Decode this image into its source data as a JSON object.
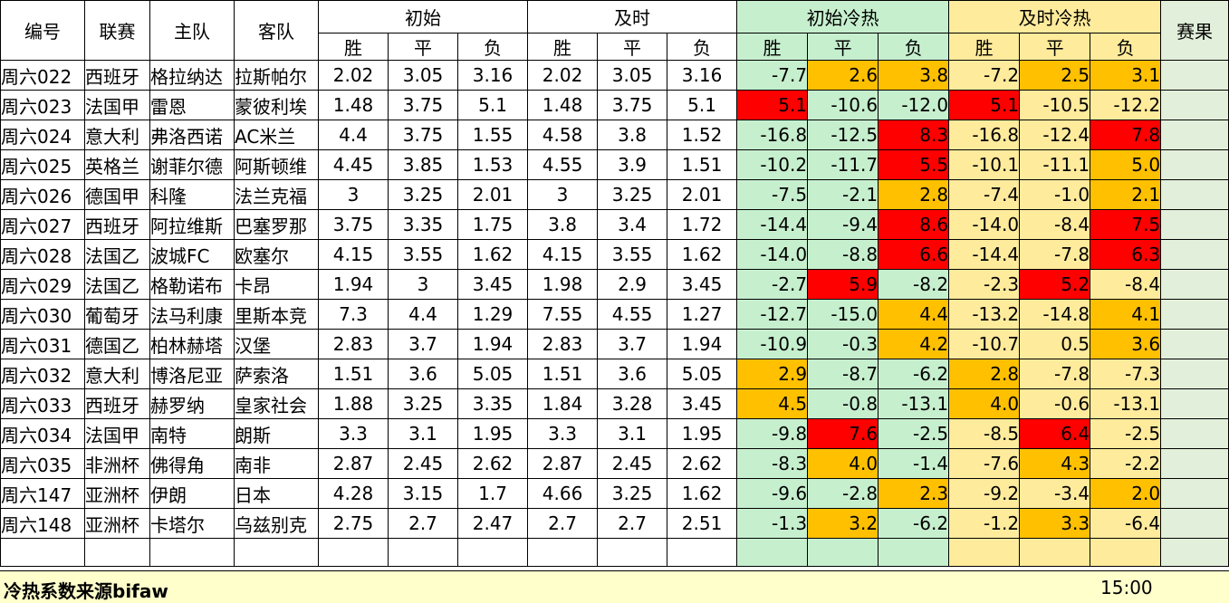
{
  "headers": {
    "id": "编号",
    "league": "联赛",
    "home": "主队",
    "away": "客队",
    "initial": "初始",
    "live": "及时",
    "initial_heat": "初始冷热",
    "live_heat": "及时冷热",
    "result": "赛果",
    "win": "胜",
    "draw": "平",
    "loss": "负"
  },
  "rows": [
    {
      "id": "周六022",
      "league": "西班牙",
      "home": "格拉纳达",
      "away": "拉斯帕尔",
      "init": [
        "2.02",
        "3.05",
        "3.16"
      ],
      "live": [
        "2.02",
        "3.05",
        "3.16"
      ],
      "iheat": [
        "-7.7",
        "2.6",
        "3.8"
      ],
      "ihc": [
        "g",
        "o",
        "o"
      ],
      "lheat": [
        "-7.2",
        "2.5",
        "3.1"
      ],
      "lhc": [
        "y",
        "o",
        "o"
      ]
    },
    {
      "id": "周六023",
      "league": "法国甲",
      "home": "雷恩",
      "away": "蒙彼利埃",
      "init": [
        "1.48",
        "3.75",
        "5.1"
      ],
      "live": [
        "1.48",
        "3.75",
        "5.1"
      ],
      "iheat": [
        "5.1",
        "-10.6",
        "-12.0"
      ],
      "ihc": [
        "r",
        "g",
        "g"
      ],
      "lheat": [
        "5.1",
        "-10.5",
        "-12.2"
      ],
      "lhc": [
        "r",
        "y",
        "y"
      ]
    },
    {
      "id": "周六024",
      "league": "意大利",
      "home": "弗洛西诺",
      "away": "AC米兰",
      "init": [
        "4.4",
        "3.75",
        "1.55"
      ],
      "live": [
        "4.58",
        "3.8",
        "1.52"
      ],
      "iheat": [
        "-16.8",
        "-12.5",
        "8.3"
      ],
      "ihc": [
        "g",
        "g",
        "r"
      ],
      "lheat": [
        "-16.8",
        "-12.4",
        "7.8"
      ],
      "lhc": [
        "y",
        "y",
        "r"
      ]
    },
    {
      "id": "周六025",
      "league": "英格兰",
      "home": "谢菲尔德",
      "away": "阿斯顿维",
      "init": [
        "4.45",
        "3.85",
        "1.53"
      ],
      "live": [
        "4.55",
        "3.9",
        "1.51"
      ],
      "iheat": [
        "-10.2",
        "-11.7",
        "5.5"
      ],
      "ihc": [
        "g",
        "g",
        "r"
      ],
      "lheat": [
        "-10.1",
        "-11.1",
        "5.0"
      ],
      "lhc": [
        "y",
        "y",
        "o"
      ]
    },
    {
      "id": "周六026",
      "league": "德国甲",
      "home": "科隆",
      "away": "法兰克福",
      "init": [
        "3",
        "3.25",
        "2.01"
      ],
      "live": [
        "3",
        "3.25",
        "2.01"
      ],
      "iheat": [
        "-7.5",
        "-2.1",
        "2.8"
      ],
      "ihc": [
        "g",
        "g",
        "o"
      ],
      "lheat": [
        "-7.4",
        "-1.0",
        "2.1"
      ],
      "lhc": [
        "y",
        "y",
        "o"
      ]
    },
    {
      "id": "周六027",
      "league": "西班牙",
      "home": "阿拉维斯",
      "away": "巴塞罗那",
      "init": [
        "3.75",
        "3.35",
        "1.75"
      ],
      "live": [
        "3.8",
        "3.4",
        "1.72"
      ],
      "iheat": [
        "-14.4",
        "-9.4",
        "8.6"
      ],
      "ihc": [
        "g",
        "g",
        "r"
      ],
      "lheat": [
        "-14.0",
        "-8.4",
        "7.5"
      ],
      "lhc": [
        "y",
        "y",
        "r"
      ]
    },
    {
      "id": "周六028",
      "league": "法国乙",
      "home": "波城FC",
      "away": "欧塞尔",
      "init": [
        "4.15",
        "3.55",
        "1.62"
      ],
      "live": [
        "4.15",
        "3.55",
        "1.62"
      ],
      "iheat": [
        "-14.0",
        "-8.8",
        "6.6"
      ],
      "ihc": [
        "g",
        "g",
        "r"
      ],
      "lheat": [
        "-14.4",
        "-7.8",
        "6.3"
      ],
      "lhc": [
        "y",
        "y",
        "r"
      ]
    },
    {
      "id": "周六029",
      "league": "法国乙",
      "home": "格勒诺布",
      "away": "卡昂",
      "init": [
        "1.94",
        "3",
        "3.45"
      ],
      "live": [
        "1.98",
        "2.9",
        "3.45"
      ],
      "iheat": [
        "-2.7",
        "5.9",
        "-8.2"
      ],
      "ihc": [
        "g",
        "r",
        "g"
      ],
      "lheat": [
        "-2.3",
        "5.2",
        "-8.4"
      ],
      "lhc": [
        "y",
        "r",
        "y"
      ]
    },
    {
      "id": "周六030",
      "league": "葡萄牙",
      "home": "法马利康",
      "away": "里斯本竞",
      "init": [
        "7.3",
        "4.4",
        "1.29"
      ],
      "live": [
        "7.55",
        "4.55",
        "1.27"
      ],
      "iheat": [
        "-12.7",
        "-15.0",
        "4.4"
      ],
      "ihc": [
        "g",
        "g",
        "o"
      ],
      "lheat": [
        "-13.2",
        "-14.8",
        "4.1"
      ],
      "lhc": [
        "y",
        "y",
        "o"
      ]
    },
    {
      "id": "周六031",
      "league": "德国乙",
      "home": "柏林赫塔",
      "away": "汉堡",
      "init": [
        "2.83",
        "3.7",
        "1.94"
      ],
      "live": [
        "2.83",
        "3.7",
        "1.94"
      ],
      "iheat": [
        "-10.9",
        "-0.3",
        "4.2"
      ],
      "ihc": [
        "g",
        "g",
        "o"
      ],
      "lheat": [
        "-10.7",
        "0.5",
        "3.6"
      ],
      "lhc": [
        "y",
        "y",
        "o"
      ]
    },
    {
      "id": "周六032",
      "league": "意大利",
      "home": "博洛尼亚",
      "away": "萨索洛",
      "init": [
        "1.51",
        "3.6",
        "5.05"
      ],
      "live": [
        "1.51",
        "3.6",
        "5.05"
      ],
      "iheat": [
        "2.9",
        "-8.7",
        "-6.2"
      ],
      "ihc": [
        "o",
        "g",
        "g"
      ],
      "lheat": [
        "2.8",
        "-7.8",
        "-7.3"
      ],
      "lhc": [
        "o",
        "y",
        "y"
      ]
    },
    {
      "id": "周六033",
      "league": "西班牙",
      "home": "赫罗纳",
      "away": "皇家社会",
      "init": [
        "1.88",
        "3.25",
        "3.35"
      ],
      "live": [
        "1.84",
        "3.28",
        "3.45"
      ],
      "iheat": [
        "4.5",
        "-0.8",
        "-13.1"
      ],
      "ihc": [
        "o",
        "g",
        "g"
      ],
      "lheat": [
        "4.0",
        "-0.6",
        "-13.1"
      ],
      "lhc": [
        "o",
        "y",
        "y"
      ]
    },
    {
      "id": "周六034",
      "league": "法国甲",
      "home": "南特",
      "away": "朗斯",
      "init": [
        "3.3",
        "3.1",
        "1.95"
      ],
      "live": [
        "3.3",
        "3.1",
        "1.95"
      ],
      "iheat": [
        "-9.8",
        "7.6",
        "-2.5"
      ],
      "ihc": [
        "g",
        "r",
        "g"
      ],
      "lheat": [
        "-8.5",
        "6.4",
        "-2.5"
      ],
      "lhc": [
        "y",
        "r",
        "y"
      ]
    },
    {
      "id": "周六035",
      "league": "非洲杯",
      "home": "佛得角",
      "away": "南非",
      "init": [
        "2.87",
        "2.45",
        "2.62"
      ],
      "live": [
        "2.87",
        "2.45",
        "2.62"
      ],
      "iheat": [
        "-8.3",
        "4.0",
        "-1.4"
      ],
      "ihc": [
        "g",
        "o",
        "g"
      ],
      "lheat": [
        "-7.6",
        "4.3",
        "-2.2"
      ],
      "lhc": [
        "y",
        "o",
        "y"
      ]
    },
    {
      "id": "周六147",
      "league": "亚洲杯",
      "home": "伊朗",
      "away": "日本",
      "init": [
        "4.28",
        "3.15",
        "1.7"
      ],
      "live": [
        "4.66",
        "3.25",
        "1.62"
      ],
      "iheat": [
        "-9.6",
        "-2.8",
        "2.3"
      ],
      "ihc": [
        "g",
        "g",
        "o"
      ],
      "lheat": [
        "-9.2",
        "-3.4",
        "2.0"
      ],
      "lhc": [
        "y",
        "y",
        "o"
      ]
    },
    {
      "id": "周六148",
      "league": "亚洲杯",
      "home": "卡塔尔",
      "away": "乌兹别克",
      "init": [
        "2.75",
        "2.7",
        "2.47"
      ],
      "live": [
        "2.7",
        "2.7",
        "2.51"
      ],
      "iheat": [
        "-1.3",
        "3.2",
        "-6.2"
      ],
      "ihc": [
        "g",
        "o",
        "g"
      ],
      "lheat": [
        "-1.2",
        "3.3",
        "-6.4"
      ],
      "lhc": [
        "y",
        "o",
        "y"
      ]
    }
  ],
  "colors": {
    "g": "#c6efce",
    "y": "#ffeb9c",
    "o": "#ffc000",
    "r": "#ff0000",
    "result": "#e2efda",
    "footer": "#ffffcc"
  },
  "footer": {
    "note": "冷热系数来源bifaw",
    "time": "15:00"
  }
}
